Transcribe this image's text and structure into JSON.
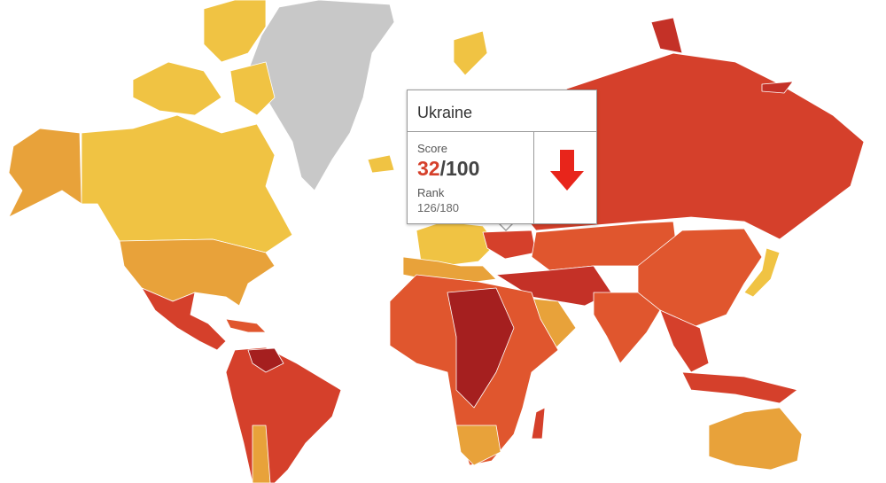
{
  "tooltip": {
    "country": "Ukraine",
    "score_label": "Score",
    "score": "32",
    "score_max": "/100",
    "rank_label": "Rank",
    "rank": "126/180"
  }
}
